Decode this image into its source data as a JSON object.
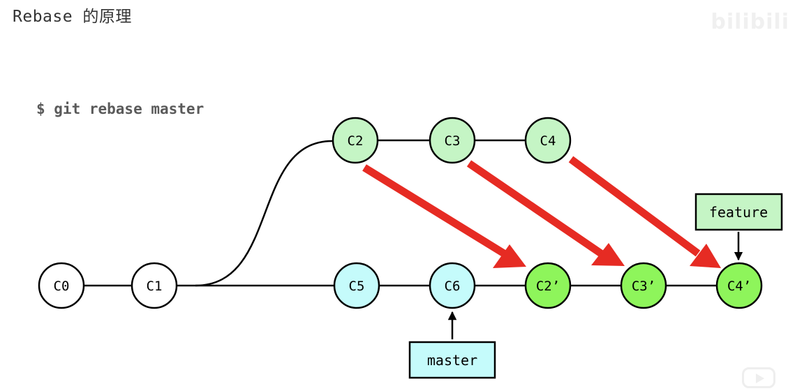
{
  "header": {
    "title": "Rebase 的原理"
  },
  "watermark": {
    "text": "bilibili"
  },
  "command": {
    "text": "$ git rebase master"
  },
  "diagram": {
    "colors": {
      "white_node": "#ffffff",
      "original_commit": "#c5f5c5",
      "master_commit": "#c5fbfb",
      "rebased_commit": "#8ef55b",
      "rebase_arrow": "#e62b23",
      "branch_feature_label": "#c5f5c5",
      "branch_master_label": "#c5fbfb"
    },
    "commits": [
      {
        "id": "c0",
        "label": "C0",
        "style": "white_node"
      },
      {
        "id": "c1",
        "label": "C1",
        "style": "white_node"
      },
      {
        "id": "c2",
        "label": "C2",
        "style": "original_commit"
      },
      {
        "id": "c3",
        "label": "C3",
        "style": "original_commit"
      },
      {
        "id": "c4",
        "label": "C4",
        "style": "original_commit"
      },
      {
        "id": "c5",
        "label": "C5",
        "style": "master_commit"
      },
      {
        "id": "c6",
        "label": "C6",
        "style": "master_commit"
      },
      {
        "id": "c2p",
        "label": "C2’",
        "style": "rebased_commit"
      },
      {
        "id": "c3p",
        "label": "C3’",
        "style": "rebased_commit"
      },
      {
        "id": "c4p",
        "label": "C4’",
        "style": "rebased_commit"
      }
    ],
    "branches": [
      {
        "id": "feature",
        "label": "feature",
        "points_to": "c4p"
      },
      {
        "id": "master",
        "label": "master",
        "points_to": "c6"
      }
    ],
    "rebase_moves": [
      {
        "from": "c2",
        "to": "c2p"
      },
      {
        "from": "c3",
        "to": "c3p"
      },
      {
        "from": "c4",
        "to": "c4p"
      }
    ]
  }
}
